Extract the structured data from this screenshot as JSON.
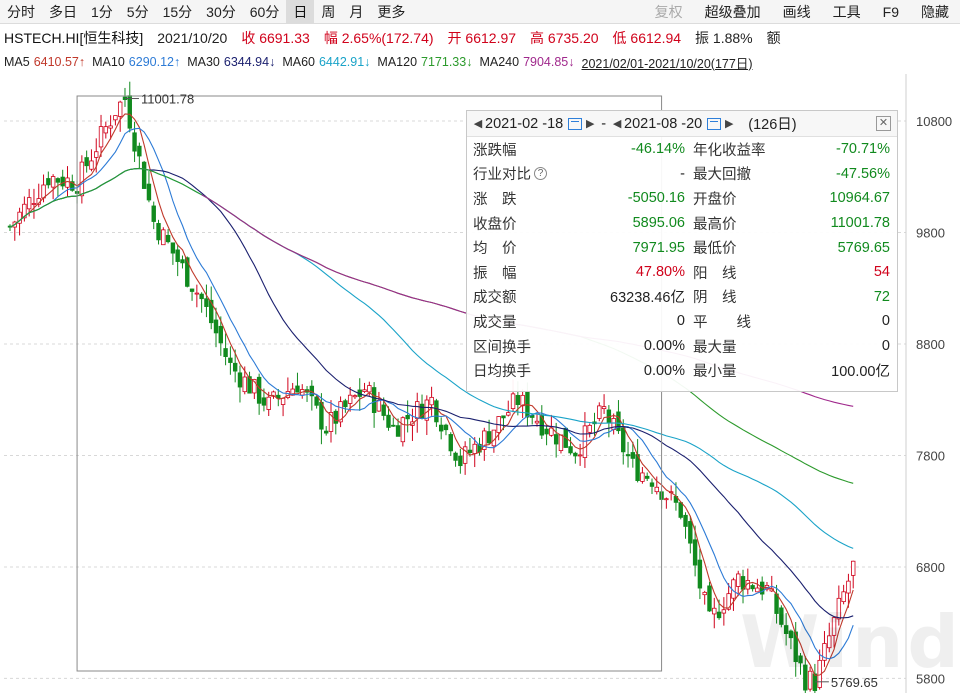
{
  "toolbar": {
    "periods": [
      "分时",
      "多日",
      "1分",
      "5分",
      "15分",
      "30分",
      "60分",
      "日",
      "周",
      "月",
      "更多"
    ],
    "active_period": "日",
    "right_items": [
      "复权",
      "超级叠加",
      "画线",
      "工具",
      "F9",
      "隐藏"
    ]
  },
  "quote": {
    "code": "HSTECH.HI[恒生科技]",
    "date": "2021/10/20",
    "close": "收 6691.33",
    "change": "幅 2.65%(172.74)",
    "open": "开 6612.97",
    "high": "高 6735.20",
    "low": "低 6612.94",
    "amplitude": "振 1.88%",
    "amount": "额"
  },
  "ma_row": {
    "ma5": {
      "label": "MA5",
      "value": "6410.57↑",
      "color": "#c0392b"
    },
    "ma10": {
      "label": "MA10",
      "value": "6290.12↑",
      "color": "#2d7bd6"
    },
    "ma30": {
      "label": "MA30",
      "value": "6344.94↓",
      "color": "#1a1f6e"
    },
    "ma60": {
      "label": "MA60",
      "value": "6442.91↓",
      "color": "#1aa3c8"
    },
    "ma120": {
      "label": "MA120",
      "value": "7171.33↓",
      "color": "#2c9a2c"
    },
    "ma240": {
      "label": "MA240",
      "value": "7904.85↓",
      "color": "#a0288c"
    },
    "range": "2021/02/01-2021/10/20(177日)"
  },
  "chart_data": {
    "type": "candlestick",
    "y_ticks": [
      "10800",
      "9800",
      "8800",
      "7800",
      "6800",
      "5800"
    ],
    "ylim": [
      5750,
      11150
    ],
    "max_label": "11001.78",
    "min_label": "5769.65",
    "ma_colors": {
      "ma5": "#c0392b",
      "ma10": "#2d7bd6",
      "ma30": "#1a1f6e",
      "ma60": "#1aa3c8",
      "ma120": "#2c9a2c",
      "ma240": "#a0288c"
    }
  },
  "popup": {
    "start_date": "2021-02 -18",
    "end_date": "2021-08 -20",
    "days": "(126日)",
    "separator": "-",
    "close_label": "✕",
    "rows": [
      {
        "l1": "涨跌幅",
        "v1": "-46.14%",
        "c1": "down",
        "l2": "年化收益率",
        "v2": "-70.71%",
        "c2": "down"
      },
      {
        "l1": "行业对比",
        "v1": "-",
        "c1": "",
        "l2": "最大回撤",
        "v2": "-47.56%",
        "c2": "down",
        "help": true
      },
      {
        "l1": "涨　跌",
        "v1": "-5050.16",
        "c1": "down",
        "l2": "开盘价",
        "v2": "10964.67",
        "c2": "down"
      },
      {
        "l1": "收盘价",
        "v1": "5895.06",
        "c1": "down",
        "l2": "最高价",
        "v2": "11001.78",
        "c2": "down"
      },
      {
        "l1": "均　价",
        "v1": "7971.95",
        "c1": "down",
        "l2": "最低价",
        "v2": "5769.65",
        "c2": "down"
      },
      {
        "l1": "振　幅",
        "v1": "47.80%",
        "c1": "up",
        "l2": "阳　线",
        "v2": "54",
        "c2": "up"
      },
      {
        "l1": "成交额",
        "v1": "63238.46亿",
        "c1": "",
        "l2": "阴　线",
        "v2": "72",
        "c2": "down"
      },
      {
        "l1": "成交量",
        "v1": "0",
        "c1": "",
        "l2": "平　　线",
        "v2": "0",
        "c2": ""
      },
      {
        "l1": "区间换手",
        "v1": "0.00%",
        "c1": "",
        "l2": "最大量",
        "v2": "0",
        "c2": ""
      },
      {
        "l1": "日均换手",
        "v1": "0.00%",
        "c1": "",
        "l2": "最小量",
        "v2": "100.00亿",
        "c2": ""
      }
    ]
  },
  "watermark": "Wind"
}
